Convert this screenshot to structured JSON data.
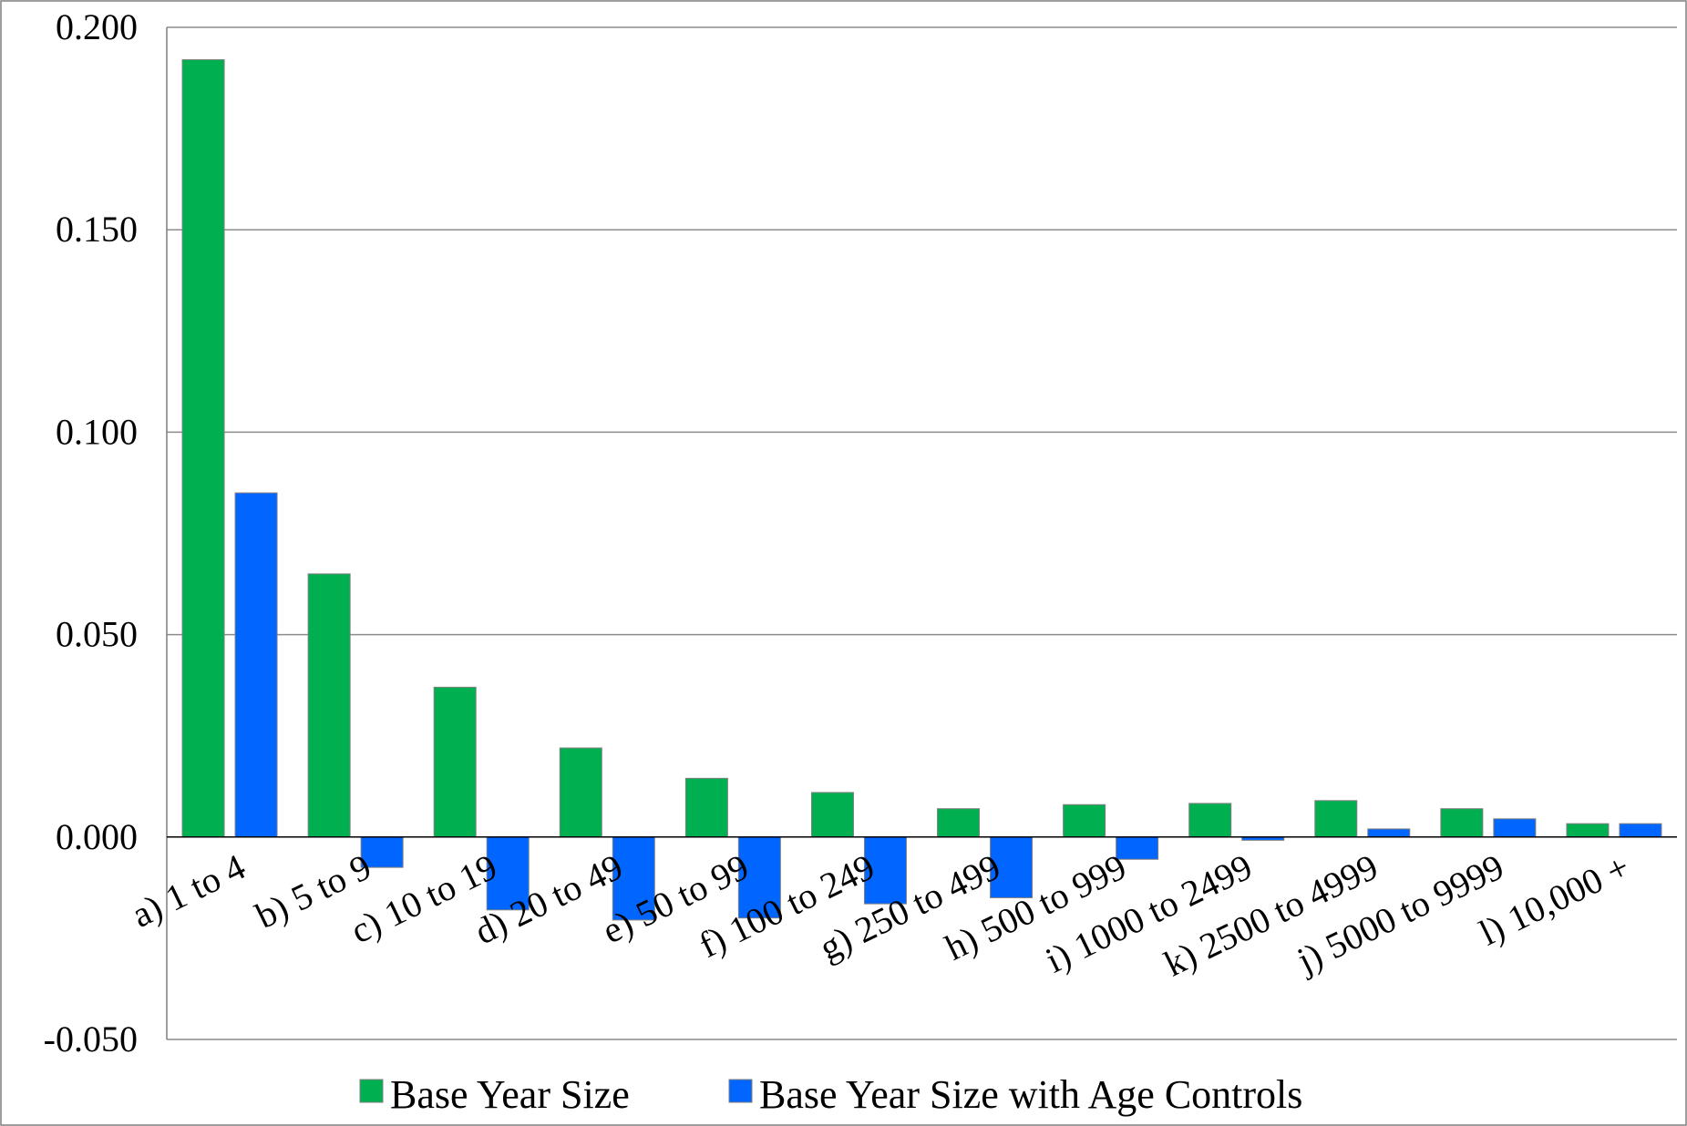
{
  "chart_data": {
    "type": "bar",
    "title": "",
    "xlabel": "",
    "ylabel": "",
    "categories": [
      "a) 1 to 4",
      "b) 5 to 9",
      "c) 10 to 19",
      "d) 20 to 49",
      "e) 50 to 99",
      "f) 100 to 249",
      "g) 250 to 499",
      "h) 500 to 999",
      "i) 1000 to 2499",
      "k) 2500 to 4999",
      "j) 5000 to 9999",
      "l) 10,000 +"
    ],
    "series": [
      {
        "name": "Base Year Size",
        "color": "#00B050",
        "values": [
          0.192,
          0.065,
          0.037,
          0.022,
          0.0145,
          0.011,
          0.007,
          0.008,
          0.0083,
          0.009,
          0.007,
          0.0033
        ]
      },
      {
        "name": "Base Year Size with Age Controls",
        "color": "#0066FF",
        "values": [
          0.085,
          -0.0075,
          -0.018,
          -0.0205,
          -0.02,
          -0.0165,
          -0.015,
          -0.0055,
          -0.0008,
          0.002,
          0.0045,
          0.0033
        ]
      }
    ],
    "ylim": [
      -0.05,
      0.2
    ],
    "yticks": [
      "-0.050",
      "0.000",
      "0.050",
      "0.100",
      "0.150",
      "0.200"
    ],
    "grid": true,
    "legend_position": "bottom"
  }
}
